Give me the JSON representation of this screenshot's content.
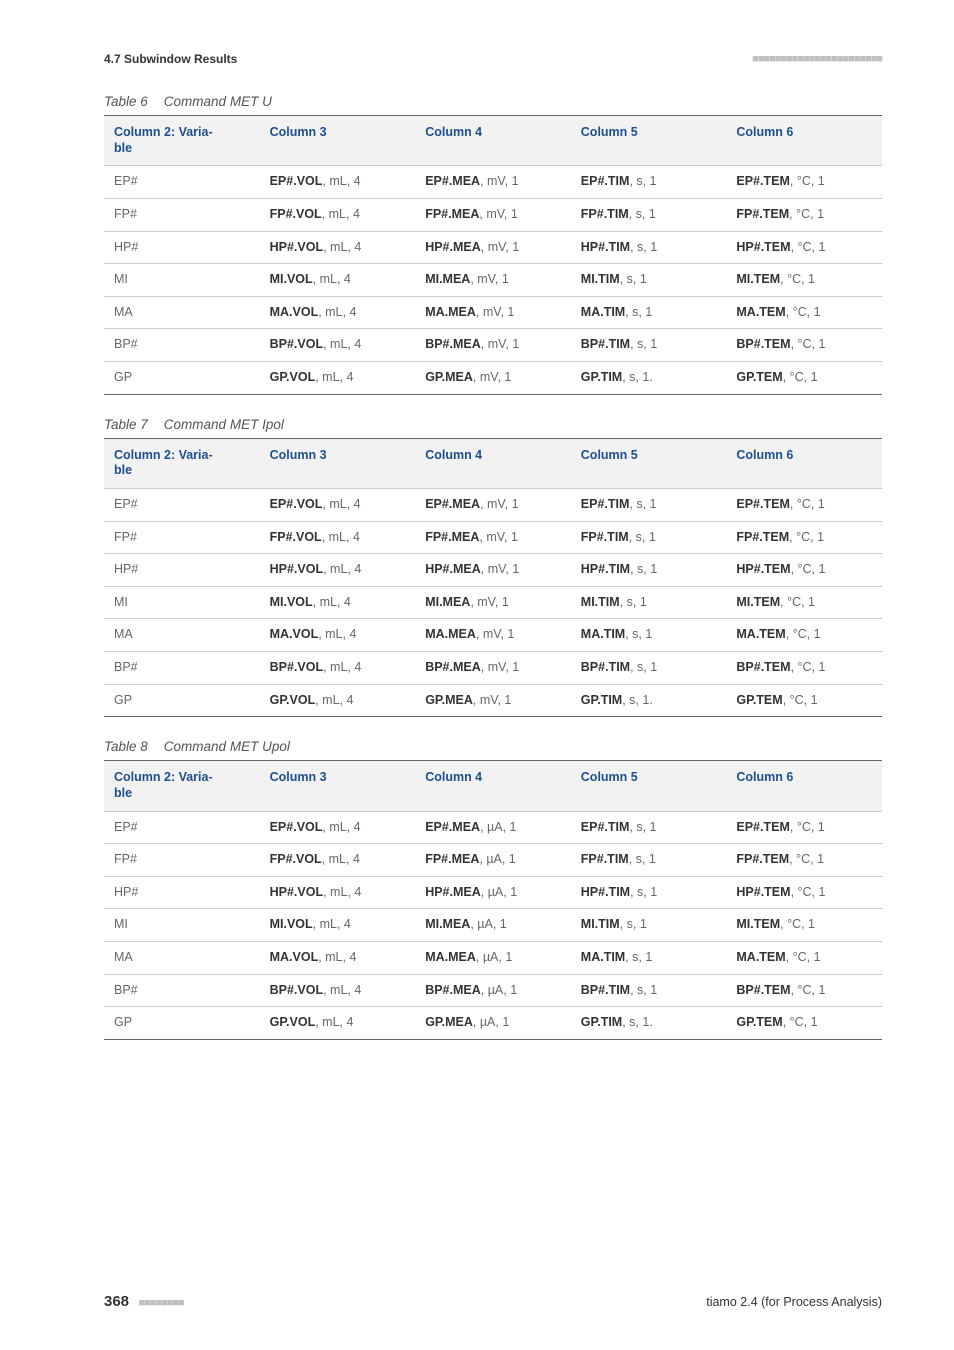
{
  "header": {
    "section": "4.7 Subwindow Results",
    "bars": "■■■■■■■■■■■■■■■■■■■■■■■"
  },
  "footer": {
    "page": "368",
    "bars": "■■■■■■■■",
    "doc": "tiamo 2.4 (for Process Analysis)"
  },
  "columns": [
    "Column 2: Variable",
    "Column 3",
    "Column 4",
    "Column 5",
    "Column 6"
  ],
  "tables": [
    {
      "num": "Table 6",
      "title": "Command MET U",
      "rows": [
        {
          "k": "EP#",
          "c3": [
            "EP#.VOL",
            ", mL, 4"
          ],
          "c4": [
            "EP#.MEA",
            ", mV, 1"
          ],
          "c5": [
            "EP#.TIM",
            ", s, 1"
          ],
          "c6": [
            "EP#.TEM",
            ", °C, 1"
          ]
        },
        {
          "k": "FP#",
          "c3": [
            "FP#.VOL",
            ", mL, 4"
          ],
          "c4": [
            "FP#.MEA",
            ", mV, 1"
          ],
          "c5": [
            "FP#.TIM",
            ", s, 1"
          ],
          "c6": [
            "FP#.TEM",
            ", °C, 1"
          ]
        },
        {
          "k": "HP#",
          "c3": [
            "HP#.VOL",
            ", mL, 4"
          ],
          "c4": [
            "HP#.MEA",
            ", mV, 1"
          ],
          "c5": [
            "HP#.TIM",
            ", s, 1"
          ],
          "c6": [
            "HP#.TEM",
            ", °C, 1"
          ]
        },
        {
          "k": "MI",
          "c3": [
            "MI.VOL",
            ", mL, 4"
          ],
          "c4": [
            "MI.MEA",
            ", mV, 1"
          ],
          "c5": [
            "MI.TIM",
            ", s, 1"
          ],
          "c6": [
            "MI.TEM",
            ", °C, 1"
          ]
        },
        {
          "k": "MA",
          "c3": [
            "MA.VOL",
            ", mL, 4"
          ],
          "c4": [
            "MA.MEA",
            ", mV, 1"
          ],
          "c5": [
            "MA.TIM",
            ", s, 1"
          ],
          "c6": [
            "MA.TEM",
            ", °C, 1"
          ]
        },
        {
          "k": "BP#",
          "c3": [
            "BP#.VOL",
            ", mL, 4"
          ],
          "c4": [
            "BP#.MEA",
            ", mV, 1"
          ],
          "c5": [
            "BP#.TIM",
            ", s, 1"
          ],
          "c6": [
            "BP#.TEM",
            ", °C, 1"
          ]
        },
        {
          "k": "GP",
          "c3": [
            "GP.VOL",
            ", mL, 4"
          ],
          "c4": [
            "GP.MEA",
            ", mV, 1"
          ],
          "c5": [
            "GP.TIM",
            ", s, 1."
          ],
          "c6": [
            "GP.TEM",
            ", °C, 1"
          ]
        }
      ]
    },
    {
      "num": "Table 7",
      "title": "Command MET Ipol",
      "rows": [
        {
          "k": "EP#",
          "c3": [
            "EP#.VOL",
            ", mL, 4"
          ],
          "c4": [
            "EP#.MEA",
            ", mV, 1"
          ],
          "c5": [
            "EP#.TIM",
            ", s, 1"
          ],
          "c6": [
            "EP#.TEM",
            ", °C, 1"
          ]
        },
        {
          "k": "FP#",
          "c3": [
            "FP#.VOL",
            ", mL, 4"
          ],
          "c4": [
            "FP#.MEA",
            ", mV, 1"
          ],
          "c5": [
            "FP#.TIM",
            ", s, 1"
          ],
          "c6": [
            "FP#.TEM",
            ", °C, 1"
          ]
        },
        {
          "k": "HP#",
          "c3": [
            "HP#.VOL",
            ", mL, 4"
          ],
          "c4": [
            "HP#.MEA",
            ", mV, 1"
          ],
          "c5": [
            "HP#.TIM",
            ", s, 1"
          ],
          "c6": [
            "HP#.TEM",
            ", °C, 1"
          ]
        },
        {
          "k": "MI",
          "c3": [
            "MI.VOL",
            ", mL, 4"
          ],
          "c4": [
            "MI.MEA",
            ", mV, 1"
          ],
          "c5": [
            "MI.TIM",
            ", s, 1"
          ],
          "c6": [
            "MI.TEM",
            ", °C, 1"
          ]
        },
        {
          "k": "MA",
          "c3": [
            "MA.VOL",
            ", mL, 4"
          ],
          "c4": [
            "MA.MEA",
            ", mV, 1"
          ],
          "c5": [
            "MA.TIM",
            ", s, 1"
          ],
          "c6": [
            "MA.TEM",
            ", °C, 1"
          ]
        },
        {
          "k": "BP#",
          "c3": [
            "BP#.VOL",
            ", mL, 4"
          ],
          "c4": [
            "BP#.MEA",
            ", mV, 1"
          ],
          "c5": [
            "BP#.TIM",
            ", s, 1"
          ],
          "c6": [
            "BP#.TEM",
            ", °C, 1"
          ]
        },
        {
          "k": "GP",
          "c3": [
            "GP.VOL",
            ", mL, 4"
          ],
          "c4": [
            "GP.MEA",
            ", mV, 1"
          ],
          "c5": [
            "GP.TIM",
            ", s, 1."
          ],
          "c6": [
            "GP.TEM",
            ", °C, 1"
          ]
        }
      ]
    },
    {
      "num": "Table 8",
      "title": "Command MET Upol",
      "rows": [
        {
          "k": "EP#",
          "c3": [
            "EP#.VOL",
            ", mL, 4"
          ],
          "c4": [
            "EP#.MEA",
            ", µA, 1"
          ],
          "c5": [
            "EP#.TIM",
            ", s, 1"
          ],
          "c6": [
            "EP#.TEM",
            ", °C, 1"
          ]
        },
        {
          "k": "FP#",
          "c3": [
            "FP#.VOL",
            ", mL, 4"
          ],
          "c4": [
            "FP#.MEA",
            ", µA, 1"
          ],
          "c5": [
            "FP#.TIM",
            ", s, 1"
          ],
          "c6": [
            "FP#.TEM",
            ", °C, 1"
          ]
        },
        {
          "k": "HP#",
          "c3": [
            "HP#.VOL",
            ", mL, 4"
          ],
          "c4": [
            "HP#.MEA",
            ", µA, 1"
          ],
          "c5": [
            "HP#.TIM",
            ", s, 1"
          ],
          "c6": [
            "HP#.TEM",
            ", °C, 1"
          ]
        },
        {
          "k": "MI",
          "c3": [
            "MI.VOL",
            ", mL, 4"
          ],
          "c4": [
            "MI.MEA",
            ", µA, 1"
          ],
          "c5": [
            "MI.TIM",
            ", s, 1"
          ],
          "c6": [
            "MI.TEM",
            ", °C, 1"
          ]
        },
        {
          "k": "MA",
          "c3": [
            "MA.VOL",
            ", mL, 4"
          ],
          "c4": [
            "MA.MEA",
            ", µA, 1"
          ],
          "c5": [
            "MA.TIM",
            ", s, 1"
          ],
          "c6": [
            "MA.TEM",
            ", °C, 1"
          ]
        },
        {
          "k": "BP#",
          "c3": [
            "BP#.VOL",
            ", mL, 4"
          ],
          "c4": [
            "BP#.MEA",
            ", µA, 1"
          ],
          "c5": [
            "BP#.TIM",
            ", s, 1"
          ],
          "c6": [
            "BP#.TEM",
            ", °C, 1"
          ]
        },
        {
          "k": "GP",
          "c3": [
            "GP.VOL",
            ", mL, 4"
          ],
          "c4": [
            "GP.MEA",
            ", µA, 1"
          ],
          "c5": [
            "GP.TIM",
            ", s, 1."
          ],
          "c6": [
            "GP.TEM",
            ", °C, 1"
          ]
        }
      ]
    }
  ]
}
